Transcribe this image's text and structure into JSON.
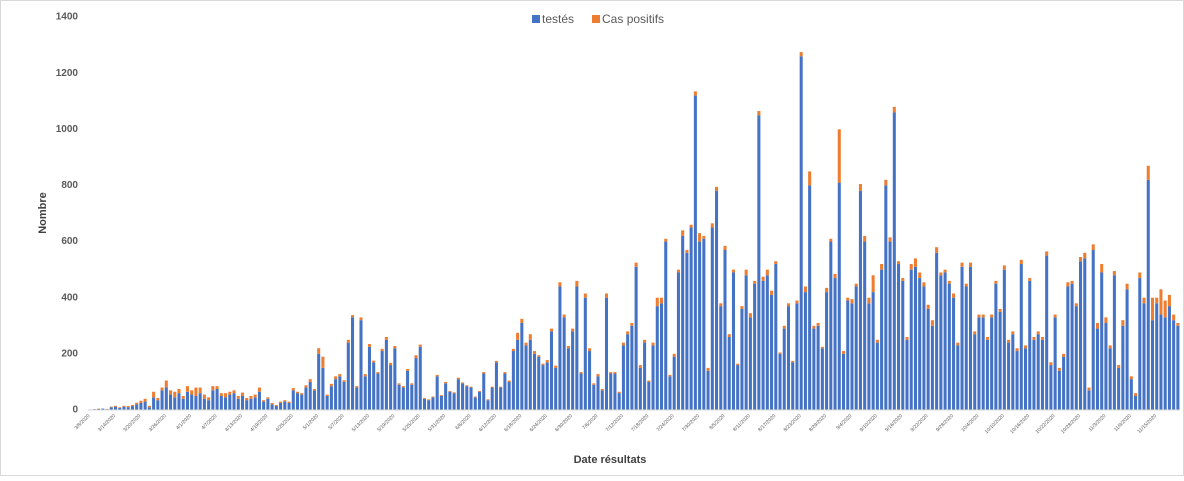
{
  "chart_data": {
    "type": "stacked_bar",
    "x_label": "Date résultats",
    "y_label": "Nombre",
    "ylim": [
      0,
      1400
    ],
    "yticks": [
      0,
      200,
      400,
      600,
      800,
      1000,
      1200,
      1400
    ],
    "grid": false,
    "legend": "top",
    "categories": [
      "3/8/2020",
      null,
      null,
      null,
      null,
      null,
      "3/14/2020",
      null,
      null,
      null,
      null,
      null,
      "3/20/2020",
      null,
      null,
      null,
      null,
      null,
      "3/26/2020",
      null,
      null,
      null,
      null,
      null,
      "4/1/2020",
      null,
      null,
      null,
      null,
      null,
      "4/7/2020",
      null,
      null,
      null,
      null,
      null,
      "4/13/2020",
      null,
      null,
      null,
      null,
      null,
      "4/19/2020",
      null,
      null,
      null,
      null,
      null,
      "4/25/2020",
      null,
      null,
      null,
      null,
      null,
      "5/1/2020",
      null,
      null,
      null,
      null,
      null,
      "5/7/2020",
      null,
      null,
      null,
      null,
      null,
      "5/13/2020",
      null,
      null,
      null,
      null,
      null,
      "5/19/2020",
      null,
      null,
      null,
      null,
      null,
      "5/25/2020",
      null,
      null,
      null,
      null,
      null,
      "5/31/2020",
      null,
      null,
      null,
      null,
      null,
      "6/6/2020",
      null,
      null,
      null,
      null,
      null,
      "6/12/2020",
      null,
      null,
      null,
      null,
      null,
      "6/18/2020",
      null,
      null,
      null,
      null,
      null,
      "6/24/2020",
      null,
      null,
      null,
      null,
      null,
      "6/30/2020",
      null,
      null,
      null,
      null,
      null,
      "7/6/2020",
      null,
      null,
      null,
      null,
      null,
      "7/12/2020",
      null,
      null,
      null,
      null,
      null,
      "7/18/2020",
      null,
      null,
      null,
      null,
      null,
      "7/24/2020",
      null,
      null,
      null,
      null,
      null,
      "7/30/2020",
      null,
      null,
      null,
      null,
      null,
      "8/5/2020",
      null,
      null,
      null,
      null,
      null,
      "8/11/2020",
      null,
      null,
      null,
      null,
      null,
      "8/17/2020",
      null,
      null,
      null,
      null,
      null,
      "8/23/2020",
      null,
      null,
      null,
      null,
      null,
      "8/29/2020",
      null,
      null,
      null,
      null,
      null,
      "9/4/2020",
      null,
      null,
      null,
      null,
      null,
      "9/10/2020",
      null,
      null,
      null,
      null,
      null,
      "9/16/2020",
      null,
      null,
      null,
      null,
      null,
      "9/22/2020",
      null,
      null,
      null,
      null,
      null,
      "9/28/2020",
      null,
      null,
      null,
      null,
      null,
      "10/4/2020",
      null,
      null,
      null,
      null,
      null,
      "10/10/2020",
      null,
      null,
      null,
      null,
      null,
      "10/16/2020",
      null,
      null,
      null,
      null,
      null,
      "10/22/2020",
      null,
      null,
      null,
      null,
      null,
      "10/28/2020",
      null,
      null,
      null,
      null,
      null,
      "11/3/2020",
      null,
      null,
      null,
      null,
      null,
      "11/9/2020",
      null,
      null,
      null,
      null,
      null,
      "11/15/2020",
      null,
      null,
      null,
      null,
      null
    ],
    "series": [
      {
        "name": "testés",
        "color": "#4472c4",
        "values": [
          2,
          3,
          4,
          5,
          3,
          10,
          12,
          8,
          12,
          10,
          14,
          20,
          25,
          30,
          10,
          45,
          35,
          70,
          80,
          55,
          45,
          60,
          40,
          65,
          55,
          50,
          60,
          40,
          35,
          70,
          75,
          50,
          45,
          55,
          60,
          40,
          50,
          35,
          40,
          45,
          65,
          30,
          40,
          20,
          15,
          25,
          30,
          25,
          70,
          60,
          55,
          80,
          100,
          70,
          200,
          150,
          50,
          85,
          110,
          120,
          100,
          240,
          330,
          80,
          320,
          120,
          225,
          170,
          130,
          210,
          250,
          160,
          220,
          90,
          80,
          140,
          90,
          185,
          225,
          40,
          35,
          45,
          120,
          50,
          95,
          65,
          60,
          110,
          95,
          85,
          80,
          45,
          65,
          130,
          35,
          80,
          170,
          80,
          130,
          100,
          210,
          250,
          310,
          230,
          250,
          200,
          190,
          160,
          170,
          280,
          150,
          440,
          330,
          220,
          280,
          440,
          130,
          400,
          210,
          90,
          120,
          70,
          400,
          130,
          130,
          60,
          230,
          270,
          300,
          510,
          150,
          240,
          100,
          230,
          370,
          380,
          600,
          120,
          190,
          490,
          620,
          560,
          650,
          1120,
          600,
          610,
          140,
          650,
          780,
          370,
          570,
          260,
          490,
          160,
          360,
          480,
          330,
          450,
          1050,
          460,
          480,
          410,
          520,
          200,
          290,
          370,
          170,
          380,
          1260,
          420,
          800,
          290,
          300,
          220,
          420,
          600,
          470,
          810,
          200,
          390,
          380,
          440,
          780,
          600,
          380,
          420,
          240,
          500,
          800,
          600,
          1060,
          520,
          460,
          250,
          500,
          510,
          470,
          440,
          360,
          300,
          560,
          480,
          490,
          450,
          400,
          230,
          510,
          440,
          510,
          270,
          330,
          330,
          250,
          330,
          450,
          350,
          500,
          240,
          270,
          210,
          520,
          220,
          460,
          250,
          270,
          250,
          550,
          160,
          330,
          140,
          190,
          440,
          450,
          370,
          530,
          540,
          70,
          570,
          290,
          490,
          310,
          220,
          480,
          150,
          300,
          430,
          110,
          50,
          470,
          380,
          820,
          320,
          380,
          340,
          330,
          370,
          320,
          300
        ]
      },
      {
        "name": "Cas positifs",
        "color": "#ed7d31",
        "values": [
          0,
          0,
          1,
          0,
          1,
          2,
          3,
          2,
          3,
          4,
          4,
          6,
          8,
          10,
          5,
          20,
          8,
          10,
          25,
          15,
          20,
          15,
          10,
          20,
          15,
          30,
          20,
          15,
          10,
          15,
          10,
          10,
          15,
          10,
          10,
          10,
          12,
          8,
          10,
          10,
          15,
          5,
          5,
          5,
          3,
          5,
          5,
          5,
          8,
          5,
          5,
          8,
          10,
          5,
          20,
          40,
          5,
          8,
          10,
          8,
          6,
          10,
          8,
          5,
          10,
          8,
          10,
          6,
          5,
          8,
          10,
          8,
          8,
          5,
          5,
          6,
          5,
          10,
          8,
          3,
          3,
          3,
          5,
          3,
          5,
          3,
          3,
          5,
          3,
          3,
          3,
          3,
          3,
          5,
          3,
          3,
          5,
          3,
          5,
          5,
          8,
          25,
          15,
          10,
          20,
          10,
          5,
          5,
          8,
          10,
          8,
          15,
          10,
          8,
          10,
          20,
          5,
          15,
          10,
          5,
          8,
          5,
          15,
          5,
          5,
          5,
          10,
          10,
          10,
          15,
          10,
          10,
          5,
          10,
          30,
          20,
          10,
          5,
          10,
          10,
          20,
          10,
          10,
          15,
          30,
          10,
          10,
          15,
          15,
          10,
          15,
          10,
          10,
          5,
          10,
          20,
          15,
          10,
          15,
          15,
          20,
          15,
          10,
          5,
          10,
          10,
          5,
          10,
          15,
          20,
          50,
          10,
          10,
          5,
          15,
          10,
          15,
          190,
          10,
          10,
          15,
          10,
          25,
          20,
          20,
          60,
          10,
          20,
          20,
          15,
          20,
          10,
          10,
          10,
          20,
          30,
          20,
          15,
          15,
          20,
          20,
          10,
          10,
          10,
          15,
          10,
          15,
          10,
          15,
          10,
          10,
          10,
          10,
          10,
          10,
          10,
          15,
          10,
          10,
          10,
          15,
          10,
          10,
          10,
          10,
          10,
          15,
          10,
          10,
          10,
          10,
          15,
          10,
          10,
          15,
          20,
          10,
          20,
          20,
          30,
          20,
          10,
          15,
          10,
          20,
          20,
          10,
          10,
          20,
          20,
          50,
          80,
          20,
          90,
          60,
          40,
          20,
          10
        ]
      }
    ]
  }
}
